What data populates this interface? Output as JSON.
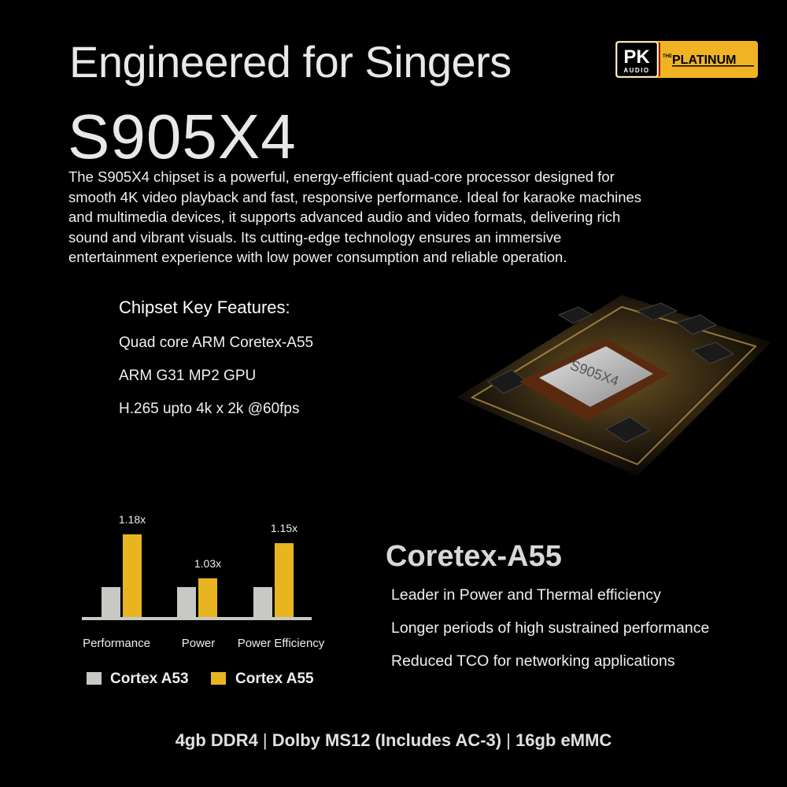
{
  "header": {
    "title": "Engineered for Singers",
    "model": "S905X4",
    "description": "The S905X4 chipset is a powerful, energy-efficient quad-core processor designed for smooth 4K video playback and fast, responsive performance. Ideal for karaoke machines and multimedia devices, it supports advanced audio and video formats, delivering rich sound and vibrant visuals. Its cutting-edge technology ensures an immersive entertainment experience with low power consumption and reliable operation."
  },
  "logo": {
    "brand": "PK",
    "sub": "AUDIO",
    "the": "THE",
    "product": "PLATINUM",
    "accent": "#f0b323"
  },
  "features": {
    "title": "Chipset Key Features:",
    "items": [
      "Quad core ARM Coretex-A55",
      "ARM G31 MP2 GPU",
      "H.265 upto 4k x 2k @60fps"
    ]
  },
  "chip_image": {
    "label": "S905X4"
  },
  "chart_data": {
    "type": "bar",
    "categories": [
      "Performance",
      "Power",
      "Power Efficiency"
    ],
    "series": [
      {
        "name": "Cortex A53",
        "values": [
          1.0,
          1.0,
          1.0
        ],
        "color": "#c8c8c4"
      },
      {
        "name": "Cortex A55",
        "values": [
          1.18,
          1.03,
          1.15
        ],
        "color": "#e8b520",
        "labels": [
          "1.18x",
          "1.03x",
          "1.15x"
        ]
      }
    ],
    "legend": "bottom",
    "grid": false
  },
  "a55": {
    "title": "Coretex-A55",
    "items": [
      "Leader in Power and Thermal efficiency",
      "Longer periods of high sustrained performance",
      "Reduced TCO for networking applications"
    ]
  },
  "footer": {
    "part1": "4gb DDR4",
    "sep": " | ",
    "part2": "Dolby MS12 (Includes AC-3)",
    "part3": "16gb eMMC"
  }
}
